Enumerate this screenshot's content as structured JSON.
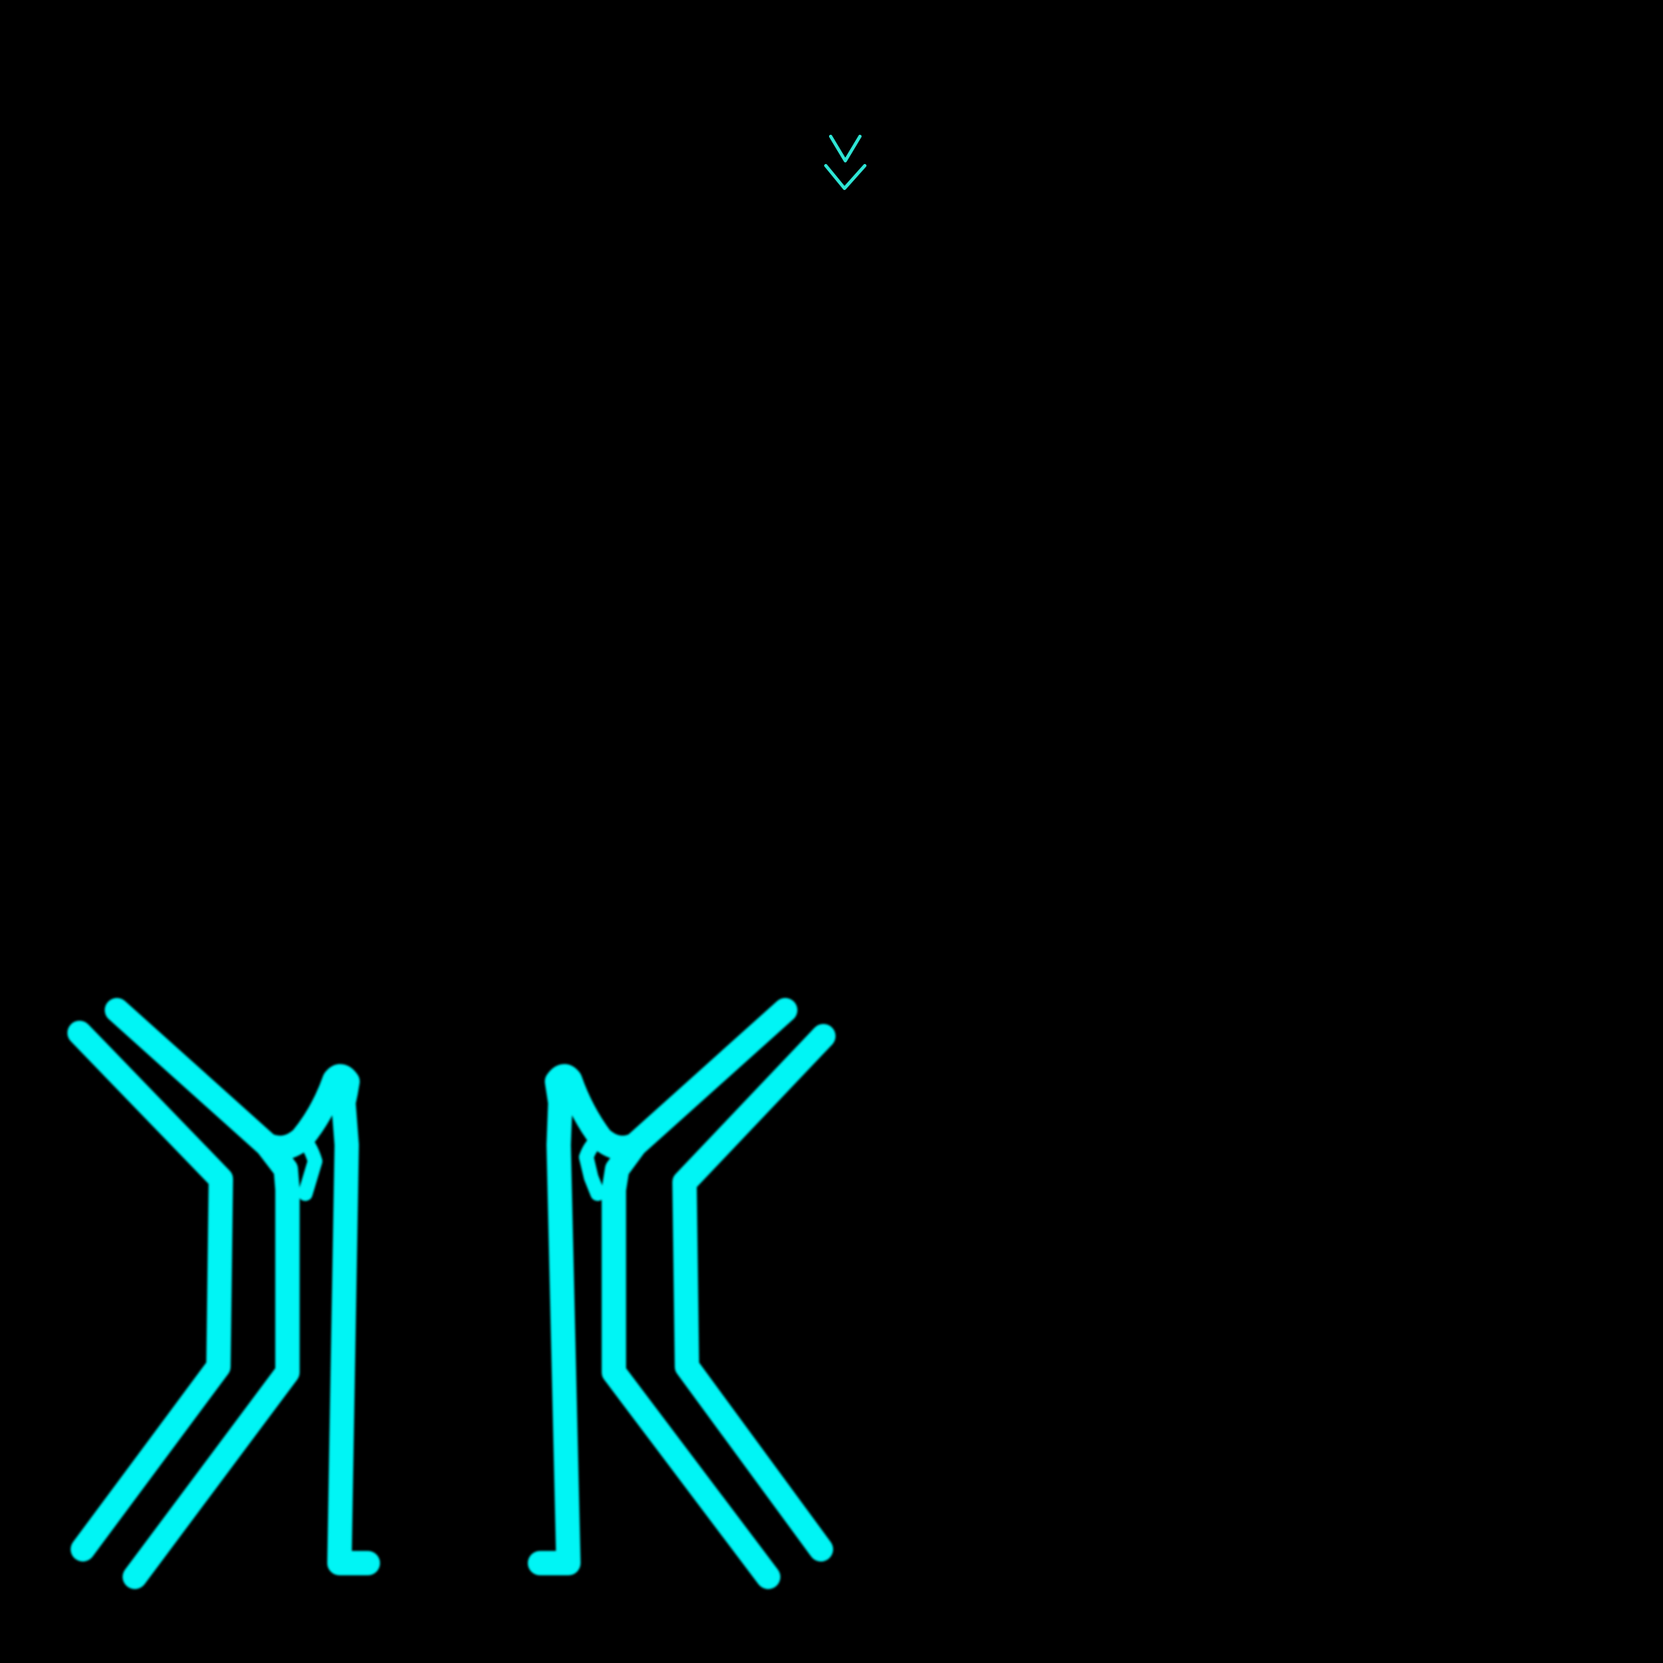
{
  "screen": {
    "background_color": "#000000",
    "accent_color": "#00F5F5",
    "chevron_color": "#2EE6D6"
  },
  "top_indicator": {
    "icon": "double-chevron-down-icon"
  },
  "glyph_left": {
    "icon": "neon-mirrored-glyph-left"
  },
  "glyph_right": {
    "icon": "neon-mirrored-glyph-right"
  }
}
